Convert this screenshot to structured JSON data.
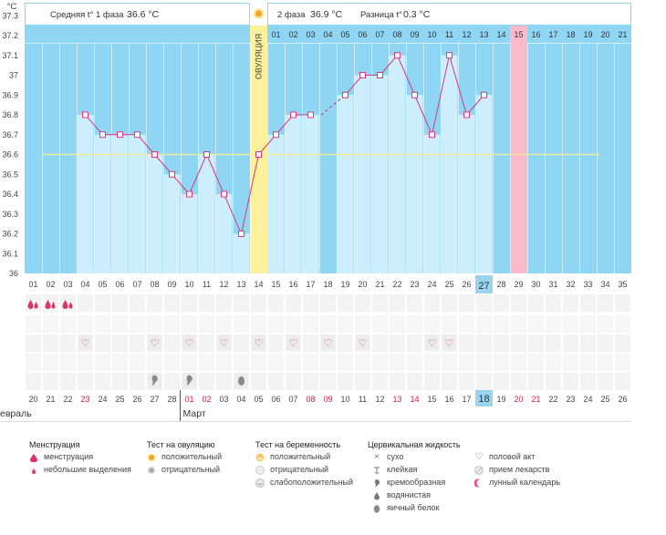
{
  "header": {
    "phase1_label": "Средняя t° 1 фаза",
    "phase1_value": "36.6 °C",
    "phase2_label": "2 фаза",
    "phase2_value": "36.9 °C",
    "diff_label": "Разница t°",
    "diff_value": "0.3 °C"
  },
  "chart_data": {
    "type": "line",
    "y_unit": "°C",
    "ylim": [
      36,
      37.3
    ],
    "y_ticks": [
      "37.3",
      "37.2",
      "37.1",
      "37",
      "36.9",
      "36.8",
      "36.7",
      "36.6",
      "36.5",
      "36.4",
      "36.3",
      "36.2",
      "36.1",
      "36"
    ],
    "cycle_days": [
      "01",
      "02",
      "03",
      "04",
      "05",
      "06",
      "07",
      "08",
      "09",
      "10",
      "11",
      "12",
      "13",
      "14",
      "15",
      "16",
      "17",
      "18",
      "19",
      "20",
      "21",
      "22",
      "23",
      "24",
      "25",
      "26",
      "27",
      "28",
      "29",
      "30",
      "31",
      "32",
      "33",
      "34",
      "35"
    ],
    "today_day": "27",
    "dates": [
      "20",
      "21",
      "22",
      "23",
      "24",
      "25",
      "26",
      "27",
      "28",
      "01",
      "02",
      "03",
      "04",
      "05",
      "06",
      "07",
      "08",
      "09",
      "10",
      "11",
      "12",
      "13",
      "14",
      "15",
      "16",
      "17",
      "18",
      "19",
      "20",
      "21",
      "22",
      "23",
      "24",
      "25",
      "26"
    ],
    "weekend_dates_idx": [
      3,
      9,
      10,
      16,
      17,
      21,
      22,
      28,
      29
    ],
    "today_date": "18",
    "month_labels": [
      {
        "label": "Февраль",
        "at": 0
      },
      {
        "label": "Март",
        "at": 9
      }
    ],
    "post_ovulation_days": [
      "01",
      "02",
      "03",
      "04",
      "05",
      "06",
      "07",
      "08",
      "09",
      "10",
      "11",
      "12",
      "13",
      "14",
      "15",
      "16",
      "17",
      "18",
      "19",
      "20",
      "21"
    ],
    "expected_period_day": "15",
    "ovulation_label": "ОВУЛЯЦИЯ",
    "ovulation_day_index": 13,
    "coverline": 36.6,
    "temperatures": [
      null,
      null,
      null,
      36.8,
      36.7,
      36.7,
      36.7,
      36.6,
      36.5,
      36.4,
      36.6,
      36.4,
      36.2,
      36.6,
      36.7,
      36.8,
      36.8,
      null,
      36.9,
      37.0,
      37.0,
      37.1,
      36.9,
      36.7,
      37.1,
      36.8,
      36.9,
      null,
      null,
      null,
      null,
      null,
      null,
      null,
      null
    ],
    "dashed_segment": [
      17,
      18
    ],
    "colors": {
      "plot": "#8fd6f5",
      "bar": "#cdeffd",
      "ovulation": "#fdf19b",
      "period": "#fbb9cc",
      "coverline": "#f0ea9a",
      "line": "#d9387a",
      "today": "#99d3ee"
    }
  },
  "markers": {
    "menstruation_days": [
      0,
      1,
      2
    ],
    "sex_days": [
      3,
      7,
      9,
      11,
      13,
      15,
      17,
      19,
      23,
      24
    ],
    "creamy_mucus_days": [
      7,
      9
    ],
    "watery_mucus_days": [
      12
    ]
  },
  "legend": {
    "menstruation": {
      "title": "Менструация",
      "items": [
        "менструация",
        "небольшие выделения"
      ]
    },
    "ovulation_test": {
      "title": "Тест на овуляцию",
      "items": [
        "положительный",
        "отрицательный"
      ]
    },
    "pregnancy_test": {
      "title": "Тест на беременность",
      "items": [
        "положительный",
        "отрицательный",
        "слабоположительный"
      ]
    },
    "cervical_fluid": {
      "title": "Цервикальная жидкость",
      "items": [
        "сухо",
        "клейкая",
        "кремообразная",
        "водянистая",
        "яичный белок"
      ]
    },
    "other": {
      "items": [
        "половой акт",
        "прием лекарств",
        "лунный календарь"
      ]
    }
  }
}
